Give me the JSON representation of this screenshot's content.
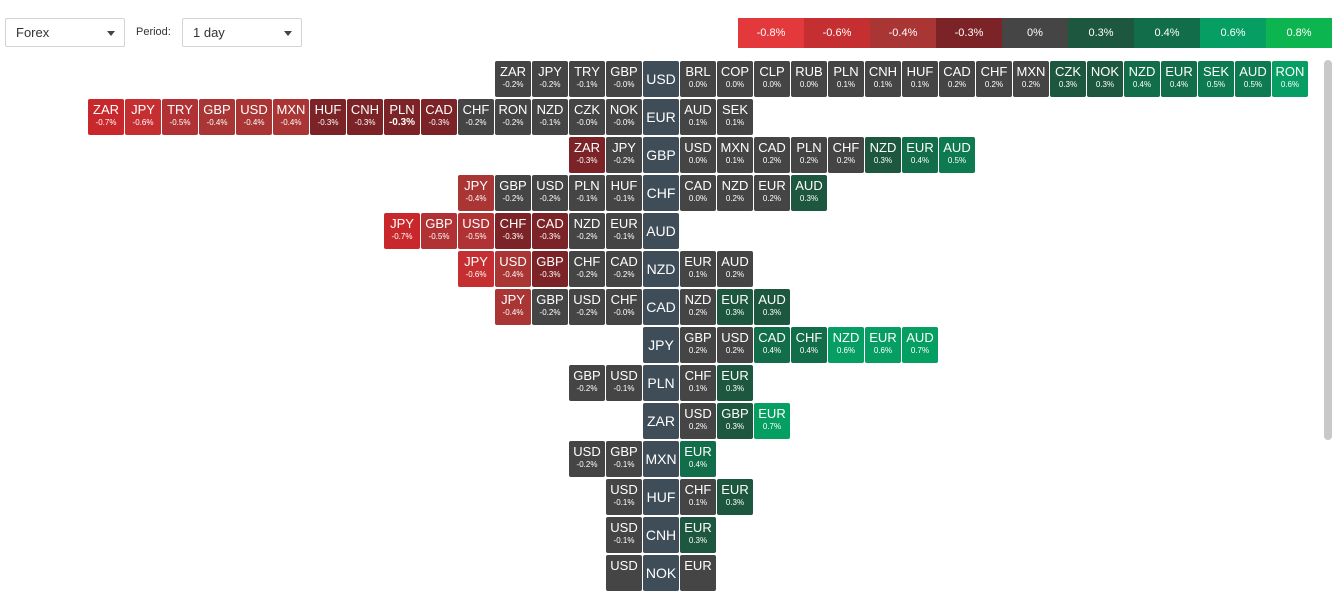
{
  "controls": {
    "market": "Forex",
    "period_label": "Period:",
    "period_value": "1 day"
  },
  "legend": [
    {
      "label": "-0.8%",
      "color": "#e3393c"
    },
    {
      "label": "-0.6%",
      "color": "#c52f31"
    },
    {
      "label": "-0.4%",
      "color": "#a93535"
    },
    {
      "label": "-0.3%",
      "color": "#7b2326"
    },
    {
      "label": "0%",
      "color": "#454545"
    },
    {
      "label": "0.3%",
      "color": "#1d573f"
    },
    {
      "label": "0.4%",
      "color": "#116d4a"
    },
    {
      "label": "0.6%",
      "color": "#069e62"
    },
    {
      "label": "0.8%",
      "color": "#0cb54f"
    }
  ],
  "rows": [
    {
      "base": "USD",
      "neg": [
        [
          "ZAR",
          "-0.2%"
        ],
        [
          "JPY",
          "-0.2%"
        ],
        [
          "TRY",
          "-0.1%"
        ],
        [
          "GBP",
          "-0.0%"
        ]
      ],
      "pos": [
        [
          "BRL",
          "0.0%"
        ],
        [
          "COP",
          "0.0%"
        ],
        [
          "CLP",
          "0.0%"
        ],
        [
          "RUB",
          "0.0%"
        ],
        [
          "PLN",
          "0.1%"
        ],
        [
          "CNH",
          "0.1%"
        ],
        [
          "HUF",
          "0.1%"
        ],
        [
          "CAD",
          "0.2%"
        ],
        [
          "CHF",
          "0.2%"
        ],
        [
          "MXN",
          "0.2%"
        ],
        [
          "CZK",
          "0.3%"
        ],
        [
          "NOK",
          "0.3%"
        ],
        [
          "NZD",
          "0.4%"
        ],
        [
          "EUR",
          "0.4%"
        ],
        [
          "SEK",
          "0.5%"
        ],
        [
          "AUD",
          "0.5%"
        ],
        [
          "RON",
          "0.6%"
        ]
      ]
    },
    {
      "base": "EUR",
      "neg": [
        [
          "ZAR",
          "-0.7%"
        ],
        [
          "JPY",
          "-0.6%"
        ],
        [
          "TRY",
          "-0.5%"
        ],
        [
          "GBP",
          "-0.4%"
        ],
        [
          "USD",
          "-0.4%"
        ],
        [
          "MXN",
          "-0.4%"
        ],
        [
          "HUF",
          "-0.3%"
        ],
        [
          "CNH",
          "-0.3%"
        ],
        [
          "PLN",
          "-0.3%"
        ],
        [
          "CAD",
          "-0.3%"
        ],
        [
          "CHF",
          "-0.2%"
        ],
        [
          "RON",
          "-0.2%"
        ],
        [
          "NZD",
          "-0.1%"
        ],
        [
          "CZK",
          "-0.0%"
        ],
        [
          "NOK",
          "-0.0%"
        ]
      ],
      "pos": [
        [
          "AUD",
          "0.1%"
        ],
        [
          "SEK",
          "0.1%"
        ]
      ]
    },
    {
      "base": "GBP",
      "neg": [
        [
          "ZAR",
          "-0.3%"
        ],
        [
          "JPY",
          "-0.2%"
        ]
      ],
      "pos": [
        [
          "USD",
          "0.0%"
        ],
        [
          "MXN",
          "0.1%"
        ],
        [
          "CAD",
          "0.2%"
        ],
        [
          "PLN",
          "0.2%"
        ],
        [
          "CHF",
          "0.2%"
        ],
        [
          "NZD",
          "0.3%"
        ],
        [
          "EUR",
          "0.4%"
        ],
        [
          "AUD",
          "0.5%"
        ]
      ]
    },
    {
      "base": "CHF",
      "neg": [
        [
          "JPY",
          "-0.4%"
        ],
        [
          "GBP",
          "-0.2%"
        ],
        [
          "USD",
          "-0.2%"
        ],
        [
          "PLN",
          "-0.1%"
        ],
        [
          "HUF",
          "-0.1%"
        ]
      ],
      "pos": [
        [
          "CAD",
          "0.0%"
        ],
        [
          "NZD",
          "0.2%"
        ],
        [
          "EUR",
          "0.2%"
        ],
        [
          "AUD",
          "0.3%"
        ]
      ]
    },
    {
      "base": "AUD",
      "neg": [
        [
          "JPY",
          "-0.7%"
        ],
        [
          "GBP",
          "-0.5%"
        ],
        [
          "USD",
          "-0.5%"
        ],
        [
          "CHF",
          "-0.3%"
        ],
        [
          "CAD",
          "-0.3%"
        ],
        [
          "NZD",
          "-0.2%"
        ],
        [
          "EUR",
          "-0.1%"
        ]
      ],
      "pos": []
    },
    {
      "base": "NZD",
      "neg": [
        [
          "JPY",
          "-0.6%"
        ],
        [
          "USD",
          "-0.4%"
        ],
        [
          "GBP",
          "-0.3%"
        ],
        [
          "CHF",
          "-0.2%"
        ],
        [
          "CAD",
          "-0.2%"
        ]
      ],
      "pos": [
        [
          "EUR",
          "0.1%"
        ],
        [
          "AUD",
          "0.2%"
        ]
      ]
    },
    {
      "base": "CAD",
      "neg": [
        [
          "JPY",
          "-0.4%"
        ],
        [
          "GBP",
          "-0.2%"
        ],
        [
          "USD",
          "-0.2%"
        ],
        [
          "CHF",
          "-0.0%"
        ]
      ],
      "pos": [
        [
          "NZD",
          "0.2%"
        ],
        [
          "EUR",
          "0.3%"
        ],
        [
          "AUD",
          "0.3%"
        ]
      ]
    },
    {
      "base": "JPY",
      "neg": [],
      "pos": [
        [
          "GBP",
          "0.2%"
        ],
        [
          "USD",
          "0.2%"
        ],
        [
          "CAD",
          "0.4%"
        ],
        [
          "CHF",
          "0.4%"
        ],
        [
          "NZD",
          "0.6%"
        ],
        [
          "EUR",
          "0.6%"
        ],
        [
          "AUD",
          "0.7%"
        ]
      ]
    },
    {
      "base": "PLN",
      "neg": [
        [
          "GBP",
          "-0.2%"
        ],
        [
          "USD",
          "-0.1%"
        ]
      ],
      "pos": [
        [
          "CHF",
          "0.1%"
        ],
        [
          "EUR",
          "0.3%"
        ]
      ]
    },
    {
      "base": "ZAR",
      "neg": [],
      "pos": [
        [
          "USD",
          "0.2%"
        ],
        [
          "GBP",
          "0.3%"
        ],
        [
          "EUR",
          "0.7%"
        ]
      ]
    },
    {
      "base": "MXN",
      "neg": [
        [
          "USD",
          "-0.2%"
        ],
        [
          "GBP",
          "-0.1%"
        ]
      ],
      "pos": [
        [
          "EUR",
          "0.4%"
        ]
      ]
    },
    {
      "base": "HUF",
      "neg": [
        [
          "USD",
          "-0.1%"
        ]
      ],
      "pos": [
        [
          "CHF",
          "0.1%"
        ],
        [
          "EUR",
          "0.3%"
        ]
      ]
    },
    {
      "base": "CNH",
      "neg": [
        [
          "USD",
          "-0.1%"
        ]
      ],
      "pos": [
        [
          "EUR",
          "0.3%"
        ]
      ]
    },
    {
      "base": "NOK",
      "neg": [
        [
          "USD",
          ""
        ]
      ],
      "pos": [
        [
          "EUR",
          ""
        ]
      ]
    }
  ]
}
